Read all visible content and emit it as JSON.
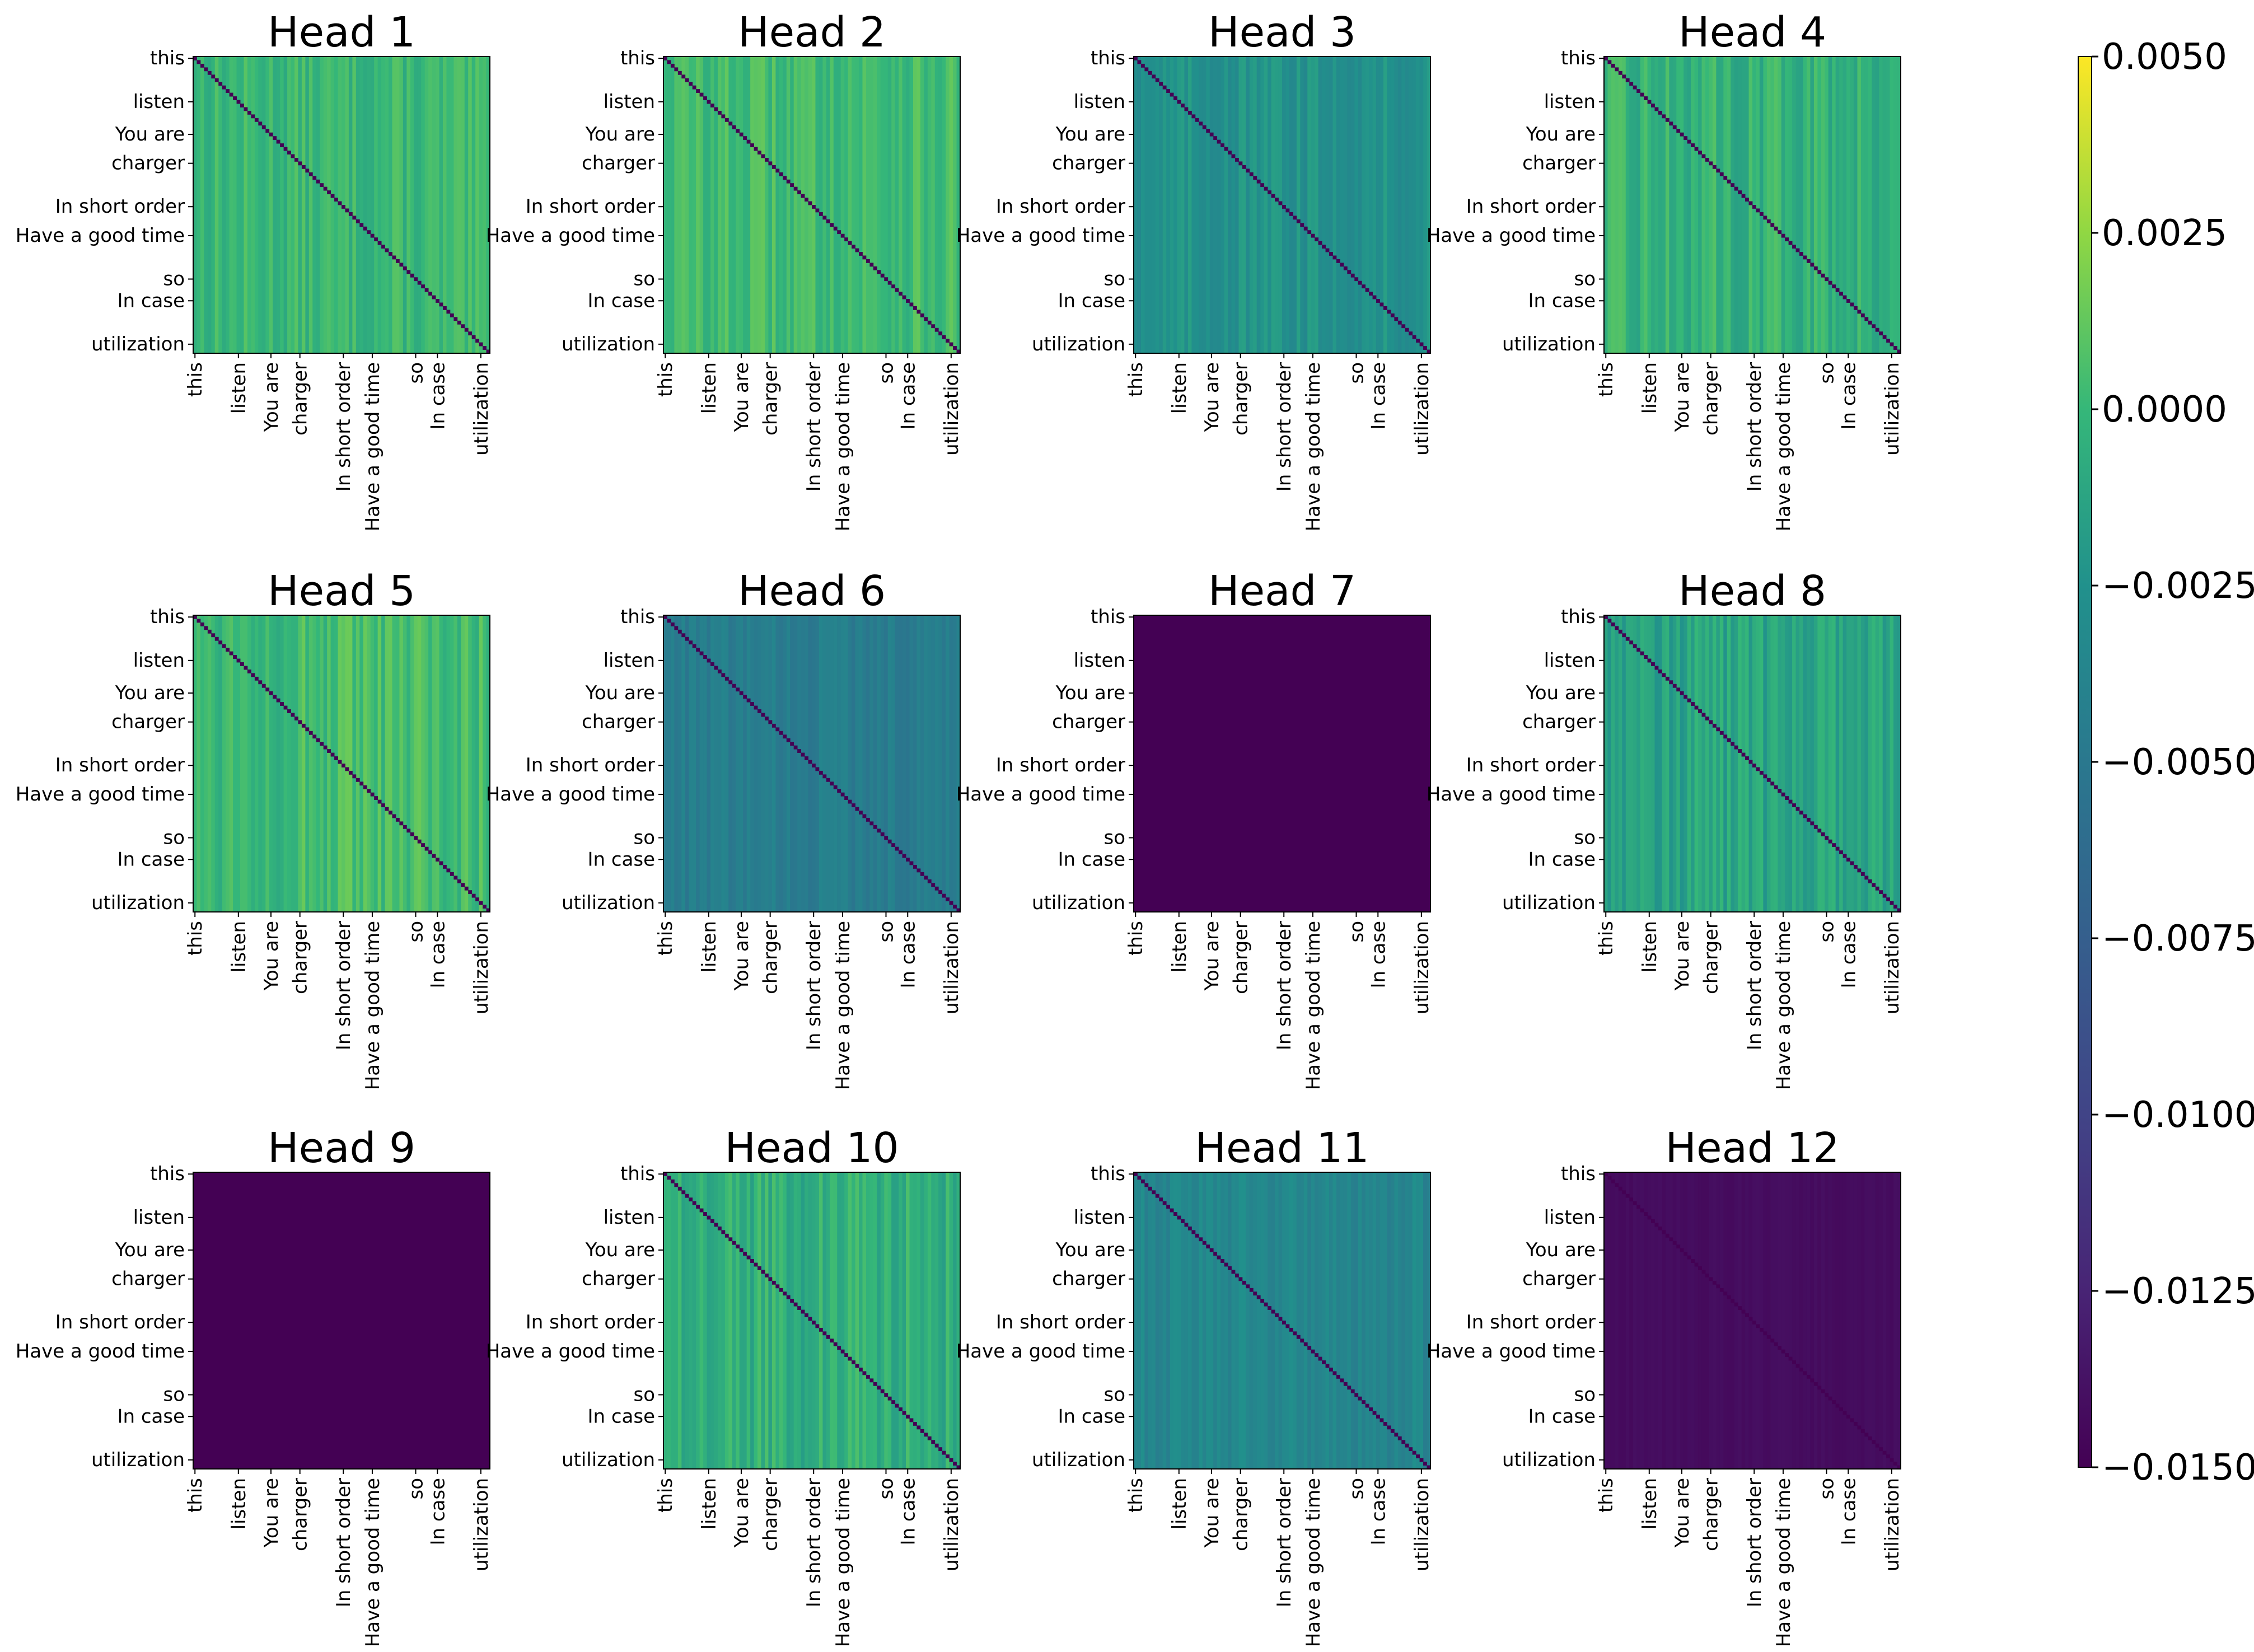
{
  "chart_data": {
    "type": "heatmap",
    "layout": "3 rows x 4 columns of attention heatmaps with a shared colorbar on the right",
    "tick_labels": [
      "this",
      "listen",
      "You are",
      "charger",
      "In short order",
      "Have a good time",
      "so",
      "In case",
      "utilization"
    ],
    "tick_positions": [
      0,
      12,
      21,
      29,
      41,
      49,
      61,
      67,
      79
    ],
    "matrix_size": 82,
    "colormap": "viridis",
    "colorbar": {
      "vmin": -0.015,
      "vmax": 0.005,
      "ticks": [
        "0.0050",
        "0.0025",
        "0.0000",
        "−0.0025",
        "−0.0050",
        "−0.0075",
        "−0.0100",
        "−0.0125",
        "−0.0150"
      ],
      "tick_values": [
        0.005,
        0.0025,
        0,
        -0.0025,
        -0.005,
        -0.0075,
        -0.01,
        -0.0125,
        -0.015
      ]
    },
    "heads": [
      {
        "title": "Head 1",
        "base": 0.0,
        "variation": 0.001,
        "diagonal": -0.015
      },
      {
        "title": "Head 2",
        "base": 0.0003,
        "variation": 0.001,
        "diagonal": -0.015
      },
      {
        "title": "Head 3",
        "base": -0.0025,
        "variation": 0.001,
        "diagonal": -0.015
      },
      {
        "title": "Head 4",
        "base": -0.0003,
        "variation": 0.0012,
        "diagonal": -0.015
      },
      {
        "title": "Head 5",
        "base": 0.0003,
        "variation": 0.0012,
        "diagonal": -0.015
      },
      {
        "title": "Head 6",
        "base": -0.0045,
        "variation": 0.0008,
        "diagonal": -0.015
      },
      {
        "title": "Head 7",
        "base": -0.015,
        "variation": 0.0,
        "diagonal": -0.015
      },
      {
        "title": "Head 8",
        "base": -0.0012,
        "variation": 0.0012,
        "diagonal": -0.015
      },
      {
        "title": "Head 9",
        "base": -0.015,
        "variation": 0.0,
        "diagonal": -0.015
      },
      {
        "title": "Head 10",
        "base": -0.0005,
        "variation": 0.0012,
        "diagonal": -0.015
      },
      {
        "title": "Head 11",
        "base": -0.0035,
        "variation": 0.001,
        "diagonal": -0.015
      },
      {
        "title": "Head 12",
        "base": -0.0142,
        "variation": 0.0002,
        "diagonal": -0.015
      }
    ]
  }
}
